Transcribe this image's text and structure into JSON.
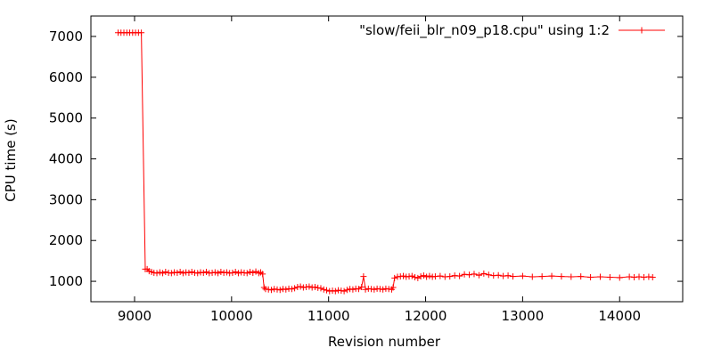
{
  "chart_data": {
    "type": "line",
    "title": "",
    "xlabel": "Revision number",
    "ylabel": "CPU time (s)",
    "xlim": [
      8550,
      14650
    ],
    "ylim": [
      500,
      7500
    ],
    "xticks": [
      9000,
      10000,
      11000,
      12000,
      13000,
      14000
    ],
    "yticks": [
      1000,
      2000,
      3000,
      4000,
      5000,
      6000,
      7000
    ],
    "grid": false,
    "legend_position": "top-right",
    "series": [
      {
        "name": "\"slow/feii_blr_n09_p18.cpu\" using 1:2",
        "color": "#ff0000",
        "marker": "plus",
        "x": [
          8830,
          8860,
          8890,
          8920,
          8950,
          8980,
          9010,
          9040,
          9070,
          9110,
          9130,
          9150,
          9175,
          9200,
          9230,
          9260,
          9290,
          9320,
          9350,
          9380,
          9410,
          9440,
          9470,
          9500,
          9530,
          9560,
          9590,
          9620,
          9650,
          9680,
          9710,
          9740,
          9770,
          9800,
          9830,
          9860,
          9890,
          9920,
          9950,
          9980,
          10010,
          10040,
          10070,
          10100,
          10130,
          10160,
          10190,
          10220,
          10250,
          10280,
          10300,
          10320,
          10335,
          10350,
          10380,
          10410,
          10440,
          10470,
          10500,
          10530,
          10560,
          10590,
          10620,
          10650,
          10680,
          10710,
          10740,
          10770,
          10800,
          10830,
          10860,
          10890,
          10920,
          10950,
          10980,
          11010,
          11040,
          11070,
          11100,
          11130,
          11160,
          11190,
          11220,
          11250,
          11280,
          11310,
          11340,
          11360,
          11380,
          11410,
          11440,
          11470,
          11500,
          11530,
          11560,
          11590,
          11620,
          11650,
          11665,
          11680,
          11710,
          11740,
          11770,
          11800,
          11830,
          11860,
          11890,
          11920,
          11950,
          11980,
          12010,
          12040,
          12070,
          12100,
          12150,
          12200,
          12250,
          12300,
          12350,
          12400,
          12450,
          12500,
          12550,
          12600,
          12650,
          12700,
          12750,
          12800,
          12850,
          12900,
          13000,
          13100,
          13200,
          13300,
          13400,
          13500,
          13600,
          13700,
          13800,
          13900,
          14000,
          14100,
          14150,
          14200,
          14250,
          14300,
          14340
        ],
        "y": [
          7090,
          7090,
          7090,
          7090,
          7090,
          7090,
          7090,
          7090,
          7090,
          1300,
          1300,
          1250,
          1230,
          1210,
          1200,
          1220,
          1200,
          1230,
          1210,
          1200,
          1220,
          1210,
          1230,
          1200,
          1220,
          1210,
          1230,
          1210,
          1200,
          1220,
          1210,
          1230,
          1200,
          1210,
          1220,
          1200,
          1230,
          1210,
          1220,
          1200,
          1210,
          1230,
          1200,
          1220,
          1210,
          1200,
          1230,
          1210,
          1240,
          1200,
          1220,
          1180,
          850,
          810,
          800,
          790,
          810,
          800,
          790,
          810,
          800,
          820,
          810,
          830,
          860,
          870,
          850,
          860,
          870,
          850,
          860,
          840,
          830,
          800,
          780,
          760,
          770,
          760,
          780,
          770,
          760,
          790,
          810,
          800,
          820,
          810,
          860,
          1120,
          800,
          820,
          810,
          800,
          820,
          810,
          800,
          820,
          810,
          800,
          850,
          1080,
          1110,
          1120,
          1130,
          1110,
          1120,
          1130,
          1100,
          1080,
          1120,
          1140,
          1110,
          1130,
          1110,
          1120,
          1130,
          1110,
          1120,
          1140,
          1130,
          1170,
          1160,
          1180,
          1150,
          1190,
          1160,
          1140,
          1150,
          1130,
          1140,
          1120,
          1130,
          1110,
          1120,
          1130,
          1120,
          1110,
          1120,
          1100,
          1110,
          1100,
          1090,
          1110,
          1100,
          1110,
          1100,
          1110,
          1100
        ]
      }
    ]
  },
  "colors": {
    "series": "#ff0000",
    "axis": "#000000",
    "background": "#ffffff"
  }
}
